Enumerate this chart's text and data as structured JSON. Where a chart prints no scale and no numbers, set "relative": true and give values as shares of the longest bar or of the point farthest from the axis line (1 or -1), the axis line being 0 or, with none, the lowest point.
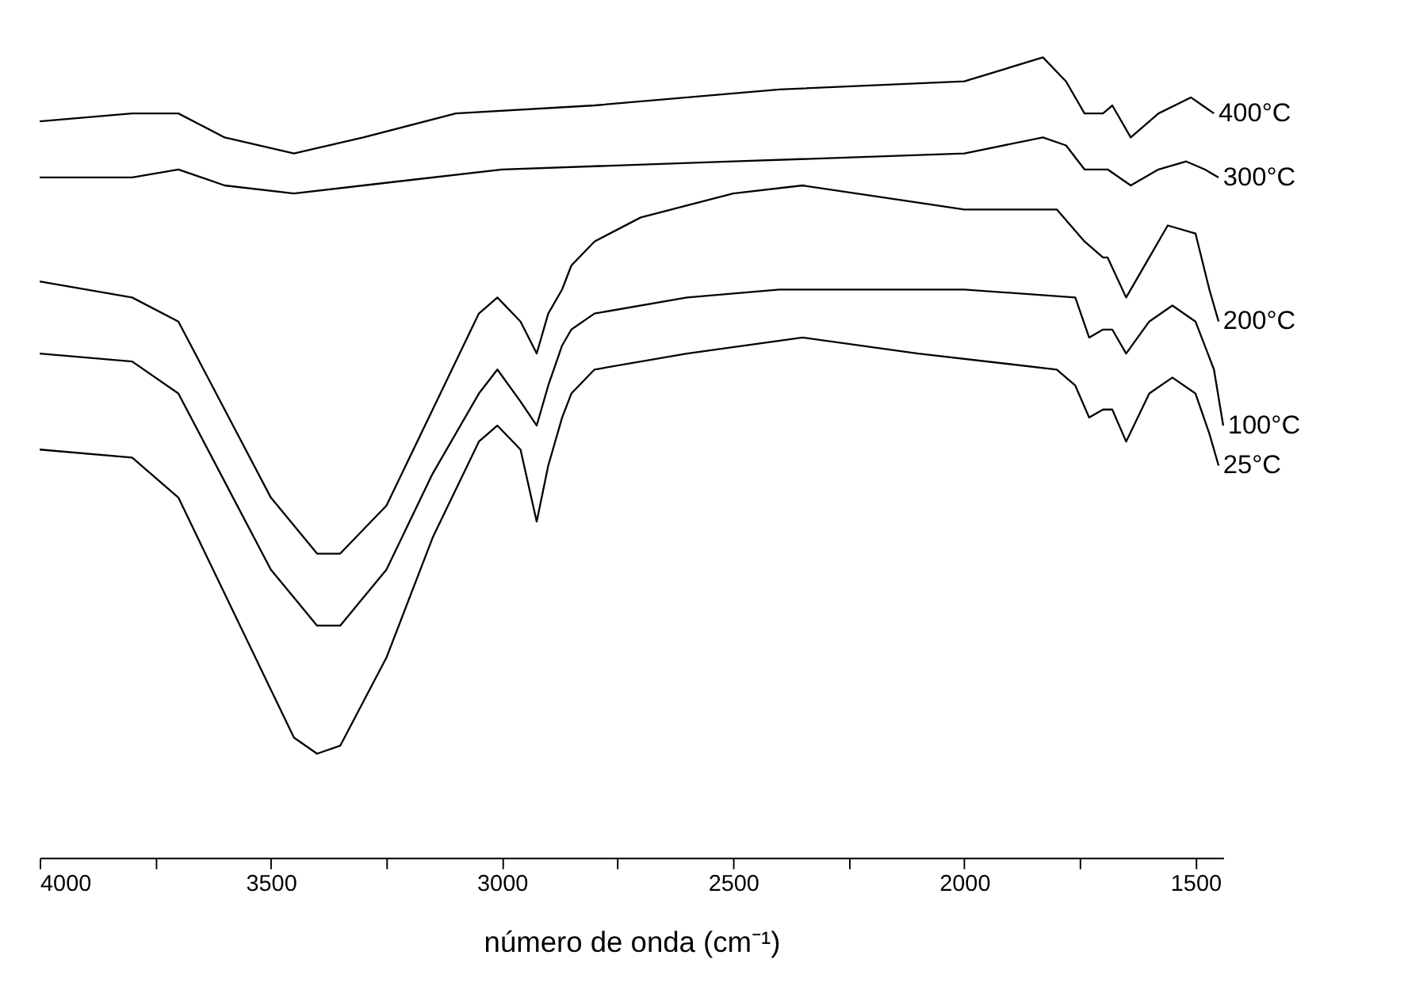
{
  "chart_data": {
    "type": "line",
    "relative": true,
    "xlabel": "número de onda (cm⁻¹)",
    "xlim": [
      4000,
      1440
    ],
    "xticks": [
      4000,
      {
        "value": 3750,
        "label": null
      },
      3500,
      {
        "value": 3250,
        "label": null
      },
      3000,
      {
        "value": 2750,
        "label": null
      },
      2500,
      {
        "value": 2250,
        "label": null
      },
      2000,
      {
        "value": 1750,
        "label": null
      },
      1500
    ],
    "grid": false,
    "legend": false,
    "marker": "none",
    "line_style": "solid",
    "series": [
      {
        "name": "400°C",
        "color": "#000000",
        "x": [
          4000,
          3800,
          3700,
          3600,
          3450,
          3300,
          3100,
          2800,
          2400,
          2000,
          1830,
          1780,
          1740,
          1700,
          1680,
          1640,
          1580,
          1510,
          1460
        ],
        "values": [
          0.92,
          0.93,
          0.93,
          0.9,
          0.88,
          0.9,
          0.93,
          0.94,
          0.96,
          0.97,
          1.0,
          0.97,
          0.93,
          0.93,
          0.94,
          0.9,
          0.93,
          0.95,
          0.93
        ]
      },
      {
        "name": "300°C",
        "color": "#000000",
        "x": [
          4000,
          3800,
          3700,
          3600,
          3450,
          3300,
          3000,
          2500,
          2000,
          1830,
          1780,
          1740,
          1690,
          1640,
          1580,
          1520,
          1480,
          1450
        ],
        "values": [
          0.85,
          0.85,
          0.86,
          0.84,
          0.83,
          0.84,
          0.86,
          0.87,
          0.88,
          0.9,
          0.89,
          0.86,
          0.86,
          0.84,
          0.86,
          0.87,
          0.86,
          0.85
        ]
      },
      {
        "name": "200°C",
        "color": "#000000",
        "x": [
          4000,
          3800,
          3700,
          3600,
          3500,
          3400,
          3350,
          3250,
          3150,
          3050,
          3010,
          2960,
          2925,
          2900,
          2870,
          2850,
          2800,
          2700,
          2500,
          2350,
          2000,
          1800,
          1740,
          1700,
          1690,
          1650,
          1600,
          1560,
          1500,
          1470,
          1450
        ],
        "values": [
          0.72,
          0.7,
          0.67,
          0.56,
          0.45,
          0.38,
          0.38,
          0.44,
          0.56,
          0.68,
          0.7,
          0.67,
          0.63,
          0.68,
          0.71,
          0.74,
          0.77,
          0.8,
          0.83,
          0.84,
          0.81,
          0.81,
          0.77,
          0.75,
          0.75,
          0.7,
          0.75,
          0.79,
          0.78,
          0.71,
          0.67
        ]
      },
      {
        "name": "100°C",
        "color": "#000000",
        "x": [
          4000,
          3800,
          3700,
          3600,
          3500,
          3400,
          3350,
          3250,
          3150,
          3050,
          3010,
          2960,
          2925,
          2900,
          2870,
          2850,
          2800,
          2600,
          2400,
          2000,
          1760,
          1730,
          1700,
          1680,
          1650,
          1600,
          1550,
          1500,
          1460,
          1440
        ],
        "values": [
          0.63,
          0.62,
          0.58,
          0.47,
          0.36,
          0.29,
          0.29,
          0.36,
          0.48,
          0.58,
          0.61,
          0.57,
          0.54,
          0.59,
          0.64,
          0.66,
          0.68,
          0.7,
          0.71,
          0.71,
          0.7,
          0.65,
          0.66,
          0.66,
          0.63,
          0.67,
          0.69,
          0.67,
          0.61,
          0.54
        ]
      },
      {
        "name": "25°C",
        "color": "#000000",
        "x": [
          4000,
          3800,
          3700,
          3600,
          3500,
          3450,
          3400,
          3350,
          3250,
          3150,
          3050,
          3010,
          2960,
          2925,
          2900,
          2870,
          2850,
          2800,
          2600,
          2350,
          2100,
          1800,
          1760,
          1730,
          1700,
          1680,
          1650,
          1600,
          1550,
          1500,
          1470,
          1450
        ],
        "values": [
          0.51,
          0.5,
          0.45,
          0.33,
          0.21,
          0.15,
          0.13,
          0.14,
          0.25,
          0.4,
          0.52,
          0.54,
          0.51,
          0.42,
          0.49,
          0.55,
          0.58,
          0.61,
          0.63,
          0.65,
          0.63,
          0.61,
          0.59,
          0.55,
          0.56,
          0.56,
          0.52,
          0.58,
          0.6,
          0.58,
          0.53,
          0.49
        ]
      }
    ]
  }
}
